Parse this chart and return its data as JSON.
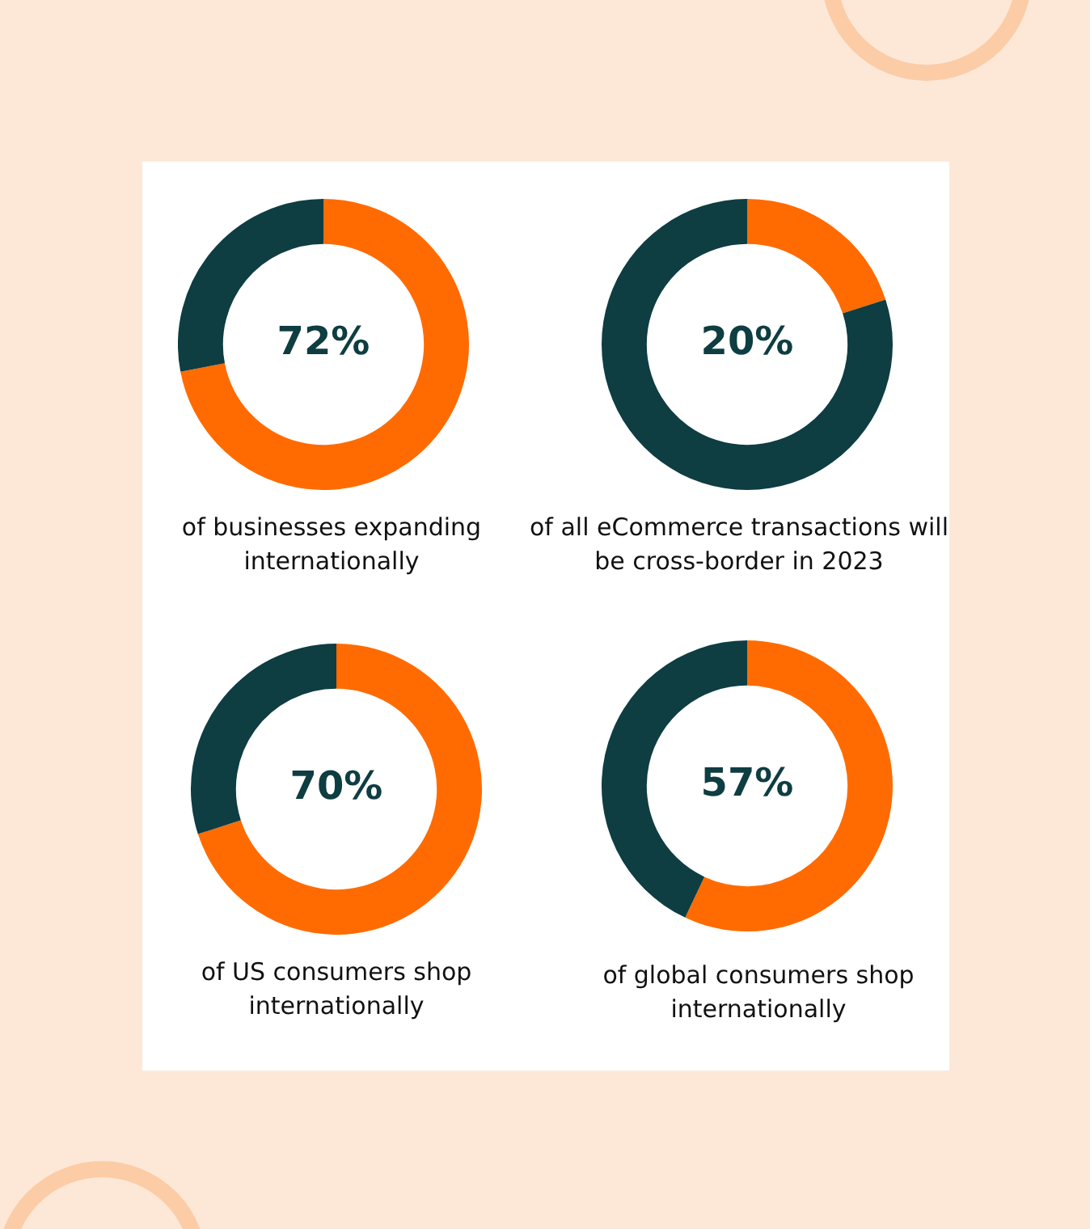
{
  "chart_data": [
    {
      "type": "donut",
      "title": "of businesses expanding internationally",
      "categories": [
        null,
        null
      ],
      "values": [
        72,
        28
      ],
      "colors": [
        "#ff6b00",
        "#0e3d42"
      ],
      "value_labels": [
        "72%",
        null
      ]
    },
    {
      "type": "donut",
      "title": "of all eCommerce transactions will be cross-border in 2023",
      "categories": [
        null,
        null
      ],
      "values": [
        20,
        80
      ],
      "colors": [
        "#ff6b00",
        "#0e3d42"
      ],
      "value_labels": [
        "20%",
        null
      ]
    },
    {
      "type": "donut",
      "title": "of US consumers shop internationally",
      "categories": [
        null,
        null
      ],
      "values": [
        70,
        30
      ],
      "colors": [
        "#ff6b00",
        "#0e3d42"
      ],
      "value_labels": [
        "70%",
        null
      ]
    },
    {
      "type": "donut",
      "title": "of global consumers shop internationally",
      "categories": [
        null,
        null
      ],
      "values": [
        57,
        43
      ],
      "colors": [
        "#ff6b00",
        "#0e3d42"
      ],
      "value_labels": [
        "57%",
        null
      ]
    }
  ]
}
